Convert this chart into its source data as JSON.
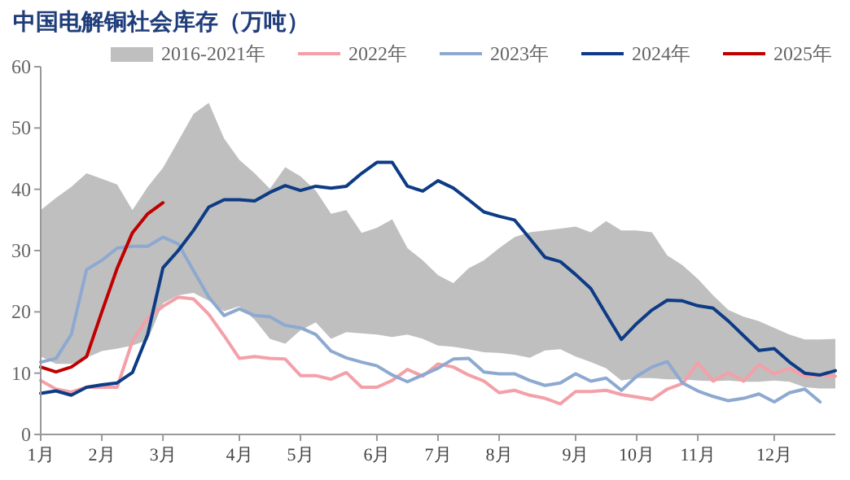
{
  "chart_data": {
    "type": "line",
    "title": "中国电解铜社会库存（万吨）",
    "categories": [
      "1月",
      null,
      null,
      null,
      "2月",
      null,
      null,
      null,
      "3月",
      null,
      null,
      null,
      null,
      "4月",
      null,
      null,
      null,
      "5月",
      null,
      null,
      null,
      null,
      "6月",
      null,
      null,
      null,
      "7月",
      null,
      null,
      null,
      "8月",
      null,
      null,
      null,
      null,
      "9月",
      null,
      null,
      null,
      "10月",
      null,
      null,
      null,
      "11月",
      null,
      null,
      null,
      null,
      "12月",
      null,
      null,
      null,
      null
    ],
    "ylim": [
      0,
      60
    ],
    "yticks": [
      0,
      10,
      20,
      30,
      40,
      50,
      60
    ],
    "grid": false,
    "legend": "top",
    "marker": "none",
    "line_style": "solid",
    "series": [
      {
        "name": "2016-2021年",
        "type": "area",
        "color": "#bfbfbf",
        "lower": [
          12.7,
          11.5,
          11.5,
          12.5,
          13.6,
          14.0,
          14.5,
          15.4,
          21.4,
          22.7,
          23.1,
          21.8,
          20.1,
          20.9,
          18.7,
          15.6,
          14.8,
          17.0,
          18.3,
          15.6,
          16.7,
          16.5,
          16.3,
          15.9,
          16.3,
          15.6,
          14.5,
          14.3,
          13.9,
          13.4,
          13.3,
          13.0,
          12.5,
          13.7,
          13.9,
          12.7,
          11.8,
          10.8,
          8.8,
          9.2,
          9.2,
          9.0,
          9.0,
          8.8,
          8.7,
          8.8,
          8.6,
          8.6,
          8.8,
          8.6,
          7.7,
          7.5,
          7.5
        ],
        "values": [
          null,
          null,
          null,
          null,
          null,
          null,
          null,
          null,
          null,
          null,
          null,
          null,
          null,
          null,
          null,
          null,
          null,
          null,
          null,
          null,
          null,
          null,
          null,
          null,
          null,
          null,
          null,
          null,
          null,
          null,
          null,
          null,
          null,
          null,
          null,
          null,
          null,
          null,
          null,
          null,
          null,
          null,
          null,
          null,
          null,
          null,
          null,
          null,
          null,
          null,
          null,
          null,
          null
        ],
        "upper": [
          36.6,
          38.6,
          40.4,
          42.6,
          41.7,
          40.8,
          36.6,
          40.4,
          43.5,
          47.9,
          52.3,
          54.1,
          48.3,
          44.8,
          42.6,
          40.1,
          43.6,
          42.1,
          39.8,
          36.0,
          36.6,
          32.9,
          33.7,
          35.1,
          30.4,
          28.4,
          26.0,
          24.7,
          27.1,
          28.4,
          30.4,
          32.2,
          33.0,
          33.3,
          33.6,
          33.9,
          33.0,
          34.8,
          33.3,
          33.3,
          33.0,
          29.2,
          27.6,
          25.4,
          22.7,
          20.3,
          19.2,
          18.5,
          17.4,
          16.3,
          15.5,
          15.5,
          15.6
        ]
      },
      {
        "name": "2022年",
        "color": "#f4a0a8",
        "values": [
          8.8,
          7.4,
          6.9,
          7.7,
          7.7,
          7.7,
          15.2,
          19.0,
          20.9,
          22.4,
          22.1,
          19.6,
          16.1,
          12.4,
          12.7,
          12.4,
          12.3,
          9.6,
          9.6,
          9.0,
          10.1,
          7.7,
          7.7,
          8.8,
          10.6,
          9.5,
          11.5,
          11.0,
          9.7,
          8.7,
          6.8,
          7.2,
          6.4,
          5.9,
          5.0,
          7.0,
          7.0,
          7.2,
          6.5,
          6.1,
          5.7,
          7.4,
          8.3,
          11.7,
          8.7,
          10.1,
          8.7,
          11.4,
          9.9,
          10.8,
          9.5,
          9.7,
          9.5
        ]
      },
      {
        "name": "2023年",
        "color": "#8ea9d0",
        "values": [
          11.8,
          12.4,
          16.3,
          26.9,
          28.4,
          30.4,
          30.7,
          30.7,
          32.2,
          31.1,
          26.7,
          22.4,
          19.4,
          20.5,
          19.4,
          19.2,
          17.8,
          17.4,
          16.3,
          13.6,
          12.5,
          11.8,
          11.2,
          9.7,
          8.6,
          9.7,
          10.8,
          12.3,
          12.4,
          10.2,
          9.9,
          9.9,
          8.8,
          8.0,
          8.4,
          9.9,
          8.7,
          9.2,
          7.2,
          9.5,
          11.0,
          11.9,
          8.4,
          7.1,
          6.2,
          5.5,
          5.9,
          6.6,
          5.3,
          6.8,
          7.4,
          5.3,
          null
        ]
      },
      {
        "name": "2024年",
        "color": "#0d3b85",
        "values": [
          6.7,
          7.1,
          6.4,
          7.7,
          8.1,
          8.4,
          10.1,
          16.3,
          27.2,
          30.0,
          33.3,
          37.1,
          38.3,
          38.3,
          38.1,
          39.5,
          40.6,
          39.8,
          40.5,
          40.2,
          40.5,
          42.6,
          44.4,
          44.4,
          40.5,
          39.7,
          41.4,
          40.2,
          38.3,
          36.3,
          35.6,
          35.0,
          32.0,
          28.9,
          28.2,
          26.1,
          23.8,
          19.6,
          15.5,
          18.1,
          20.3,
          21.9,
          21.8,
          21.0,
          20.6,
          18.5,
          16.1,
          13.7,
          14.0,
          11.8,
          10.0,
          9.7,
          10.4
        ]
      },
      {
        "name": "2025年",
        "color": "#c00000",
        "values": [
          11.0,
          10.2,
          11.0,
          12.7,
          20.0,
          27.1,
          32.9,
          36.0,
          37.8,
          null,
          null,
          null,
          null,
          null,
          null,
          null,
          null,
          null,
          null,
          null,
          null,
          null,
          null,
          null,
          null,
          null,
          null,
          null,
          null,
          null,
          null,
          null,
          null,
          null,
          null,
          null,
          null,
          null,
          null,
          null,
          null,
          null,
          null,
          null,
          null,
          null,
          null,
          null,
          null,
          null,
          null,
          null,
          null
        ]
      }
    ]
  }
}
